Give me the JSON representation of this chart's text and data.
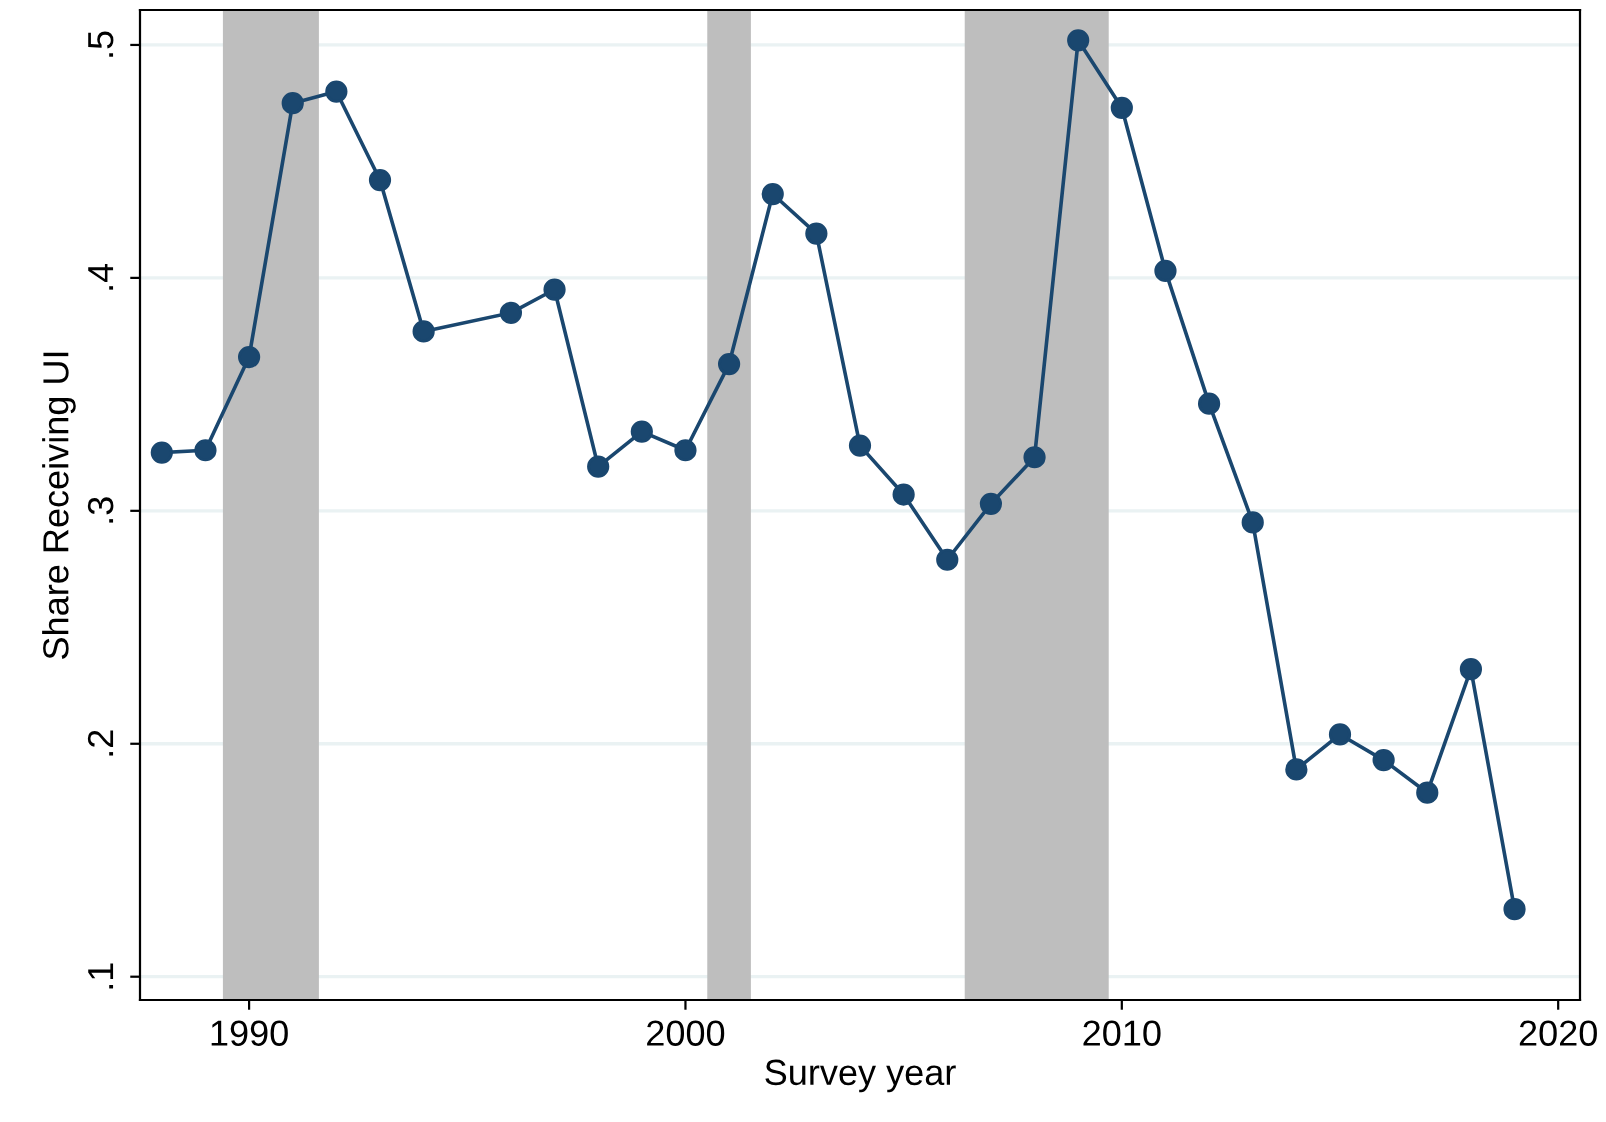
{
  "chart_data": {
    "type": "line",
    "xlabel": "Survey year",
    "ylabel": "Share Receiving UI",
    "x": [
      1988,
      1989,
      1990,
      1991,
      1992,
      1993,
      1994,
      1996,
      1997,
      1998,
      1999,
      2000,
      2001,
      2002,
      2003,
      2004,
      2005,
      2006,
      2007,
      2008,
      2009,
      2010,
      2011,
      2012,
      2013,
      2014,
      2015,
      2016,
      2017,
      2018,
      2019
    ],
    "series": [
      {
        "color": "#1a476f",
        "values": [
          0.325,
          0.326,
          0.366,
          0.475,
          0.48,
          0.442,
          0.377,
          0.385,
          0.395,
          0.319,
          0.334,
          0.326,
          0.363,
          0.436,
          0.419,
          0.328,
          0.307,
          0.279,
          0.303,
          0.323,
          0.502,
          0.473,
          0.403,
          0.346,
          0.295,
          0.189,
          0.204,
          0.193,
          0.179,
          0.232,
          0.129
        ]
      }
    ],
    "xlim": [
      1987.5,
      2020.5
    ],
    "xticks": [
      1990,
      2000,
      2010,
      2020
    ],
    "ylim": [
      0.09,
      0.515
    ],
    "yticks": [
      {
        "value": 0.1,
        "label": ".1"
      },
      {
        "value": 0.2,
        "label": ".2"
      },
      {
        "value": 0.3,
        "label": ".3"
      },
      {
        "value": 0.4,
        "label": ".4"
      },
      {
        "value": 0.5,
        "label": ".5"
      }
    ],
    "bands": [
      {
        "axis": "x",
        "from": 1989.4,
        "to": 1991.6,
        "color": "#bebebe"
      },
      {
        "axis": "x",
        "from": 2000.5,
        "to": 2001.5,
        "color": "#bebebe"
      },
      {
        "axis": "x",
        "from": 2006.4,
        "to": 2009.7,
        "color": "#bebebe"
      }
    ],
    "grid": "y",
    "marker": "circle",
    "line_style": "solid"
  }
}
